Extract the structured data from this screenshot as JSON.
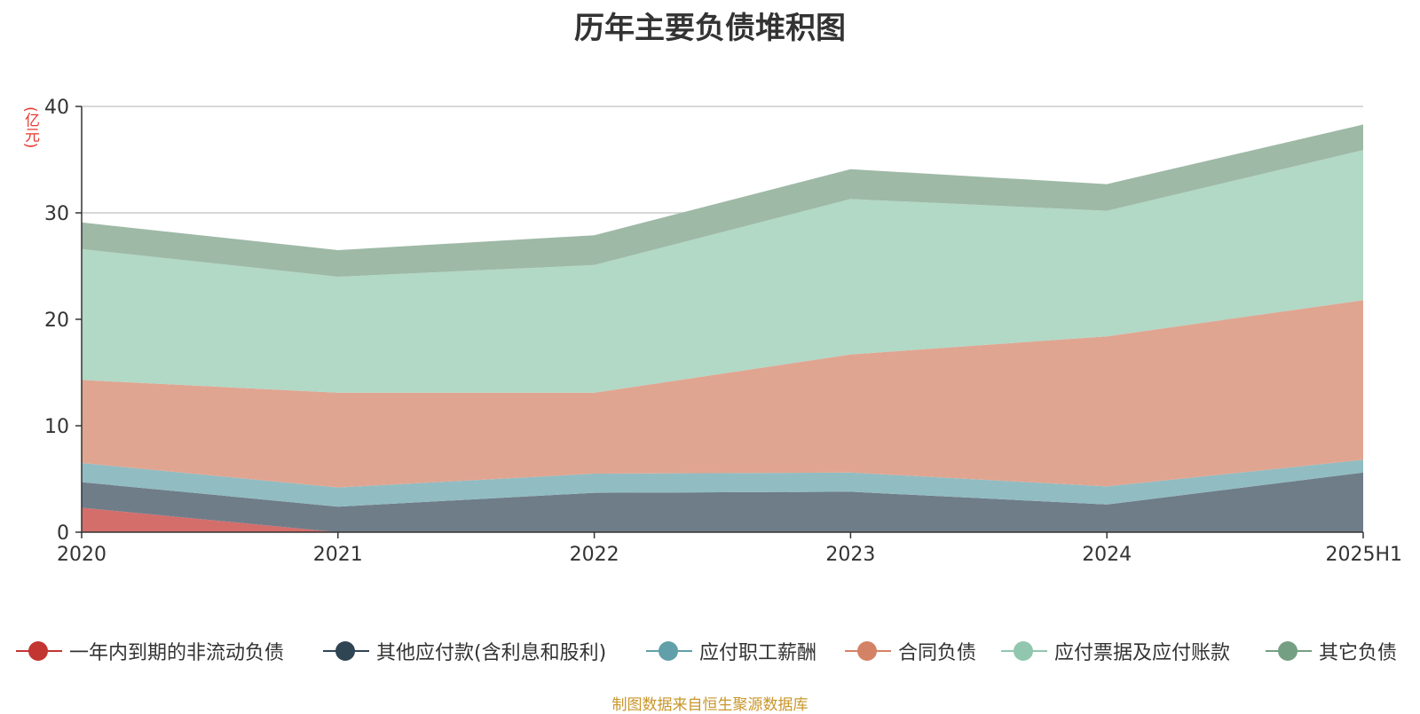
{
  "chart_data": {
    "type": "area",
    "stacked": true,
    "title": "历年主要负债堆积图",
    "unit_label": "(亿元)",
    "categories": [
      "2020",
      "2021",
      "2022",
      "2023",
      "2024",
      "2025H1"
    ],
    "ylim": [
      0,
      40
    ],
    "yticks": [
      0,
      10,
      20,
      30,
      40
    ],
    "grid": true,
    "legend_position": "bottom",
    "series": [
      {
        "name": "一年内到期的非流动负债",
        "color": "#c23531",
        "area_color": "#d46e6b",
        "values": [
          2.3,
          0.0,
          0.0,
          0.0,
          0.0,
          0.0
        ]
      },
      {
        "name": "其他应付款(含利息和股利)",
        "color": "#2f4554",
        "area_color": "#6f7d89",
        "values": [
          2.4,
          2.4,
          3.7,
          3.8,
          2.6,
          5.6
        ]
      },
      {
        "name": "应付职工薪酬",
        "color": "#61a0a8",
        "area_color": "#91bcc2",
        "values": [
          1.8,
          1.8,
          1.8,
          1.8,
          1.7,
          1.2
        ]
      },
      {
        "name": "合同负债",
        "color": "#d48265",
        "area_color": "#e0a591",
        "values": [
          7.8,
          8.9,
          7.6,
          11.1,
          14.1,
          15.0
        ]
      },
      {
        "name": "应付票据及应付账款",
        "color": "#91c7ae",
        "area_color": "#b2d8c6",
        "values": [
          12.3,
          10.9,
          12.0,
          14.6,
          11.8,
          14.1
        ]
      },
      {
        "name": "其它负债",
        "color": "#749f83",
        "area_color": "#9eb9a6",
        "values": [
          2.5,
          2.5,
          2.8,
          2.8,
          2.5,
          2.4
        ]
      }
    ]
  },
  "source_text": "制图数据来自恒生聚源数据库",
  "colors": {
    "unit": "#e8382f",
    "source": "#c9962b",
    "axis": "#333333",
    "grid": "#cccccc"
  }
}
